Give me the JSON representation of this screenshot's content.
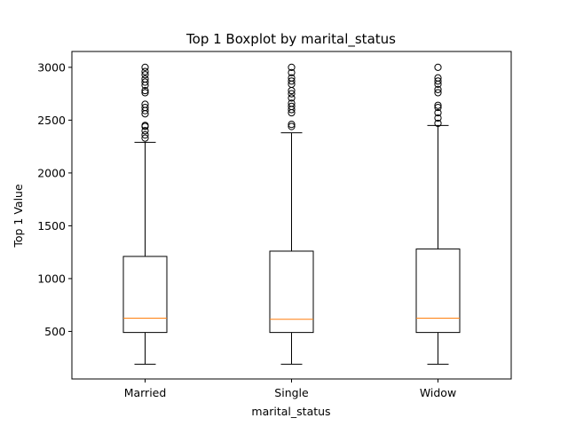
{
  "chart_data": {
    "type": "boxplot",
    "title": "Top 1 Boxplot by marital_status",
    "xlabel": "marital_status",
    "ylabel": "Top 1 Value",
    "ylim": [
      50,
      3150
    ],
    "yticks": [
      500,
      1000,
      1500,
      2000,
      2500,
      3000
    ],
    "grid": false,
    "median_color": "#ff7f0e",
    "categories": [
      "Married",
      "Single",
      "Widow"
    ],
    "boxes": [
      {
        "category": "Married",
        "whisker_low": 190,
        "q1": 490,
        "median": 625,
        "q3": 1210,
        "whisker_high": 2290,
        "outliers": [
          2330,
          2360,
          2400,
          2440,
          2450,
          2560,
          2590,
          2620,
          2650,
          2760,
          2780,
          2830,
          2860,
          2890,
          2930,
          2960,
          3000
        ]
      },
      {
        "category": "Single",
        "whisker_low": 190,
        "q1": 490,
        "median": 615,
        "q3": 1260,
        "whisker_high": 2380,
        "outliers": [
          2440,
          2460,
          2570,
          2600,
          2630,
          2660,
          2710,
          2750,
          2780,
          2840,
          2870,
          2900,
          2950,
          3000
        ]
      },
      {
        "category": "Widow",
        "whisker_low": 190,
        "q1": 490,
        "median": 625,
        "q3": 1280,
        "whisker_high": 2450,
        "outliers": [
          2470,
          2520,
          2570,
          2620,
          2640,
          2760,
          2790,
          2840,
          2870,
          2900,
          3000
        ]
      }
    ]
  }
}
